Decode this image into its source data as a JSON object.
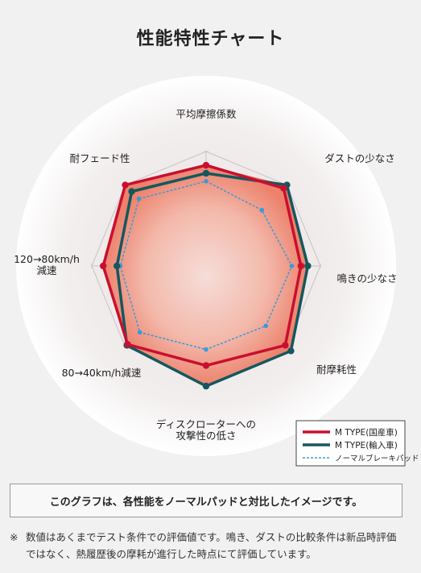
{
  "chart_data": {
    "type": "radar",
    "title": "性能特性チャート",
    "axes": [
      "平均摩擦係数",
      "ダストの少なさ",
      "鳴きの少なさ",
      "耐摩耗性",
      "ディスクローターへの攻撃性の低さ",
      "80→40km/h減速",
      "120→80km/h減速",
      "耐フェード性"
    ],
    "axis_label_lines": [
      [
        "平均摩擦係数"
      ],
      [
        "ダストの少なさ"
      ],
      [
        "鳴きの少なさ"
      ],
      [
        "耐摩耗性"
      ],
      [
        "ディスクローターへの",
        "攻撃性の低さ"
      ],
      [
        "80→40km/h減速"
      ],
      [
        "120→80km/h",
        "減速"
      ],
      [
        "耐フェード性"
      ]
    ],
    "rlim": [
      0,
      1
    ],
    "series": [
      {
        "name": "M TYPE(国産車)",
        "values": [
          0.88,
          0.96,
          0.83,
          0.98,
          0.87,
          0.97,
          0.9,
          1.0
        ],
        "color": "#c8102e",
        "style": "solid"
      },
      {
        "name": "M TYPE(輸入車)",
        "values": [
          0.81,
          1.0,
          0.89,
          1.05,
          1.05,
          0.98,
          0.78,
          0.92
        ],
        "color": "#15575e",
        "style": "solid"
      },
      {
        "name": "ノーマルブレーキパッド",
        "values": [
          0.74,
          0.69,
          0.75,
          0.74,
          0.73,
          0.82,
          0.75,
          0.83
        ],
        "color": "#3a9ad9",
        "style": "dotted"
      }
    ]
  },
  "note_box": "このグラフは、各性能をノーマルパッドと対比したイメージです。",
  "footnote": {
    "mark": "※",
    "text": "数値はあくまでテスト条件での評価値です。鳴き、ダストの比較条件は新品時評価ではなく、熱履歴後の摩耗が進行した時点にて評価しています。"
  }
}
